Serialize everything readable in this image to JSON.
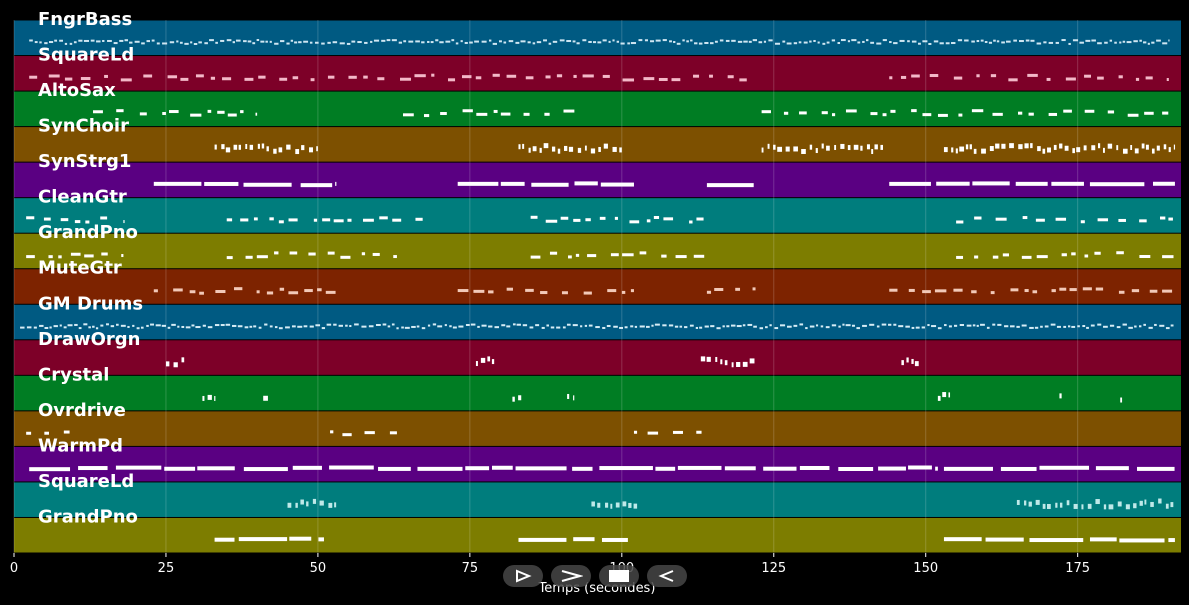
{
  "window": {
    "background": "#000000"
  },
  "piano_roll": {
    "x_axis": {
      "label": "Temps (secondes)",
      "ticks": [
        0,
        25,
        50,
        75,
        100,
        125,
        150,
        175
      ],
      "range": [
        0,
        192
      ]
    },
    "tracks": [
      {
        "name": "FngrBass",
        "color": "#005a82",
        "note_color": "#cfe6f2",
        "note_runs": [
          [
            2.5,
            190
          ]
        ],
        "pattern": "dense"
      },
      {
        "name": "SquareLd",
        "color": "#7d0028",
        "note_color": "#f3b8c8",
        "note_runs": [
          [
            2.5,
            122
          ],
          [
            144,
            190
          ]
        ],
        "pattern": "sparse"
      },
      {
        "name": "AltoSax",
        "color": "#007d23",
        "note_color": "#ffffff",
        "note_runs": [
          [
            13,
            40
          ],
          [
            64,
            93
          ],
          [
            123,
            191
          ]
        ],
        "pattern": "sparse"
      },
      {
        "name": "SynChoir",
        "color": "#7d5000",
        "note_color": "#ffffff",
        "note_runs": [
          [
            33,
            50
          ],
          [
            83,
            100
          ],
          [
            123,
            143
          ],
          [
            153,
            191
          ]
        ],
        "pattern": "blocks"
      },
      {
        "name": "SynStrg1",
        "color": "#5a0082",
        "note_color": "#ffffff",
        "note_runs": [
          [
            23,
            53
          ],
          [
            73,
            102
          ],
          [
            114,
            122
          ],
          [
            144,
            191
          ]
        ],
        "pattern": "long"
      },
      {
        "name": "CleanGtr",
        "color": "#007d7d",
        "note_color": "#ffffff",
        "note_runs": [
          [
            2,
            18
          ],
          [
            35,
            69
          ],
          [
            85,
            114
          ],
          [
            155,
            191
          ]
        ],
        "pattern": "sparse"
      },
      {
        "name": "GrandPno",
        "color": "#7d7d00",
        "note_color": "#ffffff",
        "note_runs": [
          [
            2,
            18
          ],
          [
            35,
            63
          ],
          [
            85,
            114
          ],
          [
            155,
            191
          ]
        ],
        "pattern": "sparse"
      },
      {
        "name": "MuteGtr",
        "color": "#7d2300",
        "note_color": "#f2c9b8",
        "note_runs": [
          [
            23,
            53
          ],
          [
            73,
            102
          ],
          [
            114,
            122
          ],
          [
            144,
            191
          ]
        ],
        "pattern": "sparse"
      },
      {
        "name": "GM Drums",
        "color": "#005a82",
        "note_color": "#d6ecf5",
        "note_runs": [
          [
            1,
            191
          ]
        ],
        "pattern": "dense"
      },
      {
        "name": "DrawOrgn",
        "color": "#7d0028",
        "note_color": "#ffffff",
        "note_runs": [
          [
            25,
            28
          ],
          [
            76,
            79
          ],
          [
            113,
            122
          ],
          [
            146,
            149
          ]
        ],
        "pattern": "blocks"
      },
      {
        "name": "Crystal",
        "color": "#007d23",
        "note_color": "#ffffff",
        "note_runs": [
          [
            31,
            33
          ],
          [
            41,
            42
          ],
          [
            82,
            84
          ],
          [
            91,
            92
          ],
          [
            152,
            154
          ],
          [
            172,
            173
          ],
          [
            182,
            183
          ]
        ],
        "pattern": "blocks"
      },
      {
        "name": "Ovrdrive",
        "color": "#7d5000",
        "note_color": "#ffffff",
        "note_runs": [
          [
            2,
            10
          ],
          [
            52,
            63
          ],
          [
            102,
            114
          ]
        ],
        "pattern": "sparse"
      },
      {
        "name": "WarmPd",
        "color": "#5a0082",
        "note_color": "#ffffff",
        "note_runs": [
          [
            2.5,
            152
          ],
          [
            153,
            191
          ]
        ],
        "pattern": "long"
      },
      {
        "name": "SquareLd",
        "color": "#007d7d",
        "note_color": "#bfe9e9",
        "note_runs": [
          [
            45,
            53
          ],
          [
            95,
            103
          ],
          [
            165,
            191
          ]
        ],
        "pattern": "blocks"
      },
      {
        "name": "GrandPno",
        "color": "#7d7d00",
        "note_color": "#ffffff",
        "note_runs": [
          [
            33,
            51
          ],
          [
            83,
            101
          ],
          [
            153,
            191
          ]
        ],
        "pattern": "long"
      }
    ]
  },
  "playback_controls": [
    {
      "id": "play",
      "icon": "play-outline-icon"
    },
    {
      "id": "forward",
      "icon": "chevron-right-icon"
    },
    {
      "id": "stop",
      "icon": "stop-icon"
    },
    {
      "id": "rewind",
      "icon": "play-reverse-outline-icon"
    }
  ]
}
